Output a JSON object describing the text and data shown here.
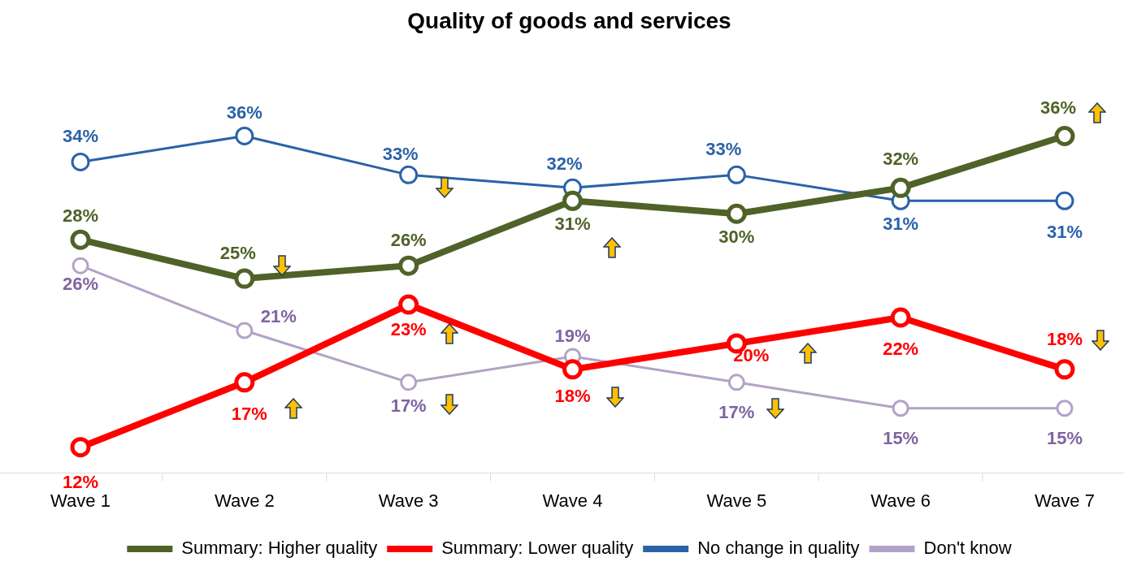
{
  "chart_data": {
    "type": "line",
    "title": "Quality of goods and services",
    "categories": [
      "Wave 1",
      "Wave 2",
      "Wave 3",
      "Wave 4",
      "Wave 5",
      "Wave 6",
      "Wave 7"
    ],
    "tick_labels": "x",
    "grid": false,
    "legend": "bottom",
    "marker": "circle",
    "series": [
      {
        "name": "Summary: Higher quality",
        "color": "#4f6228",
        "values": [
          28,
          25,
          26,
          31,
          30,
          32,
          36
        ],
        "value_labels": [
          "28%",
          "25%",
          "26%",
          "31%",
          "30%",
          "32%",
          "36%"
        ]
      },
      {
        "name": "Summary: Lower quality",
        "color": "#ff0000",
        "values": [
          12,
          17,
          23,
          18,
          20,
          22,
          18
        ],
        "value_labels": [
          "12%",
          "17%",
          "23%",
          "18%",
          "20%",
          "22%",
          "18%"
        ]
      },
      {
        "name": "No change in quality",
        "color": "#2a62a8",
        "values": [
          34,
          36,
          33,
          32,
          33,
          31,
          31
        ],
        "value_labels": [
          "34%",
          "36%",
          "33%",
          "32%",
          "33%",
          "31%",
          "31%"
        ]
      },
      {
        "name": "Don't know",
        "color": "#b3a2c7",
        "values": [
          26,
          21,
          17,
          19,
          17,
          15,
          15
        ],
        "value_labels": [
          "26%",
          "21%",
          "17%",
          "19%",
          "17%",
          "15%",
          "15%"
        ]
      }
    ]
  }
}
